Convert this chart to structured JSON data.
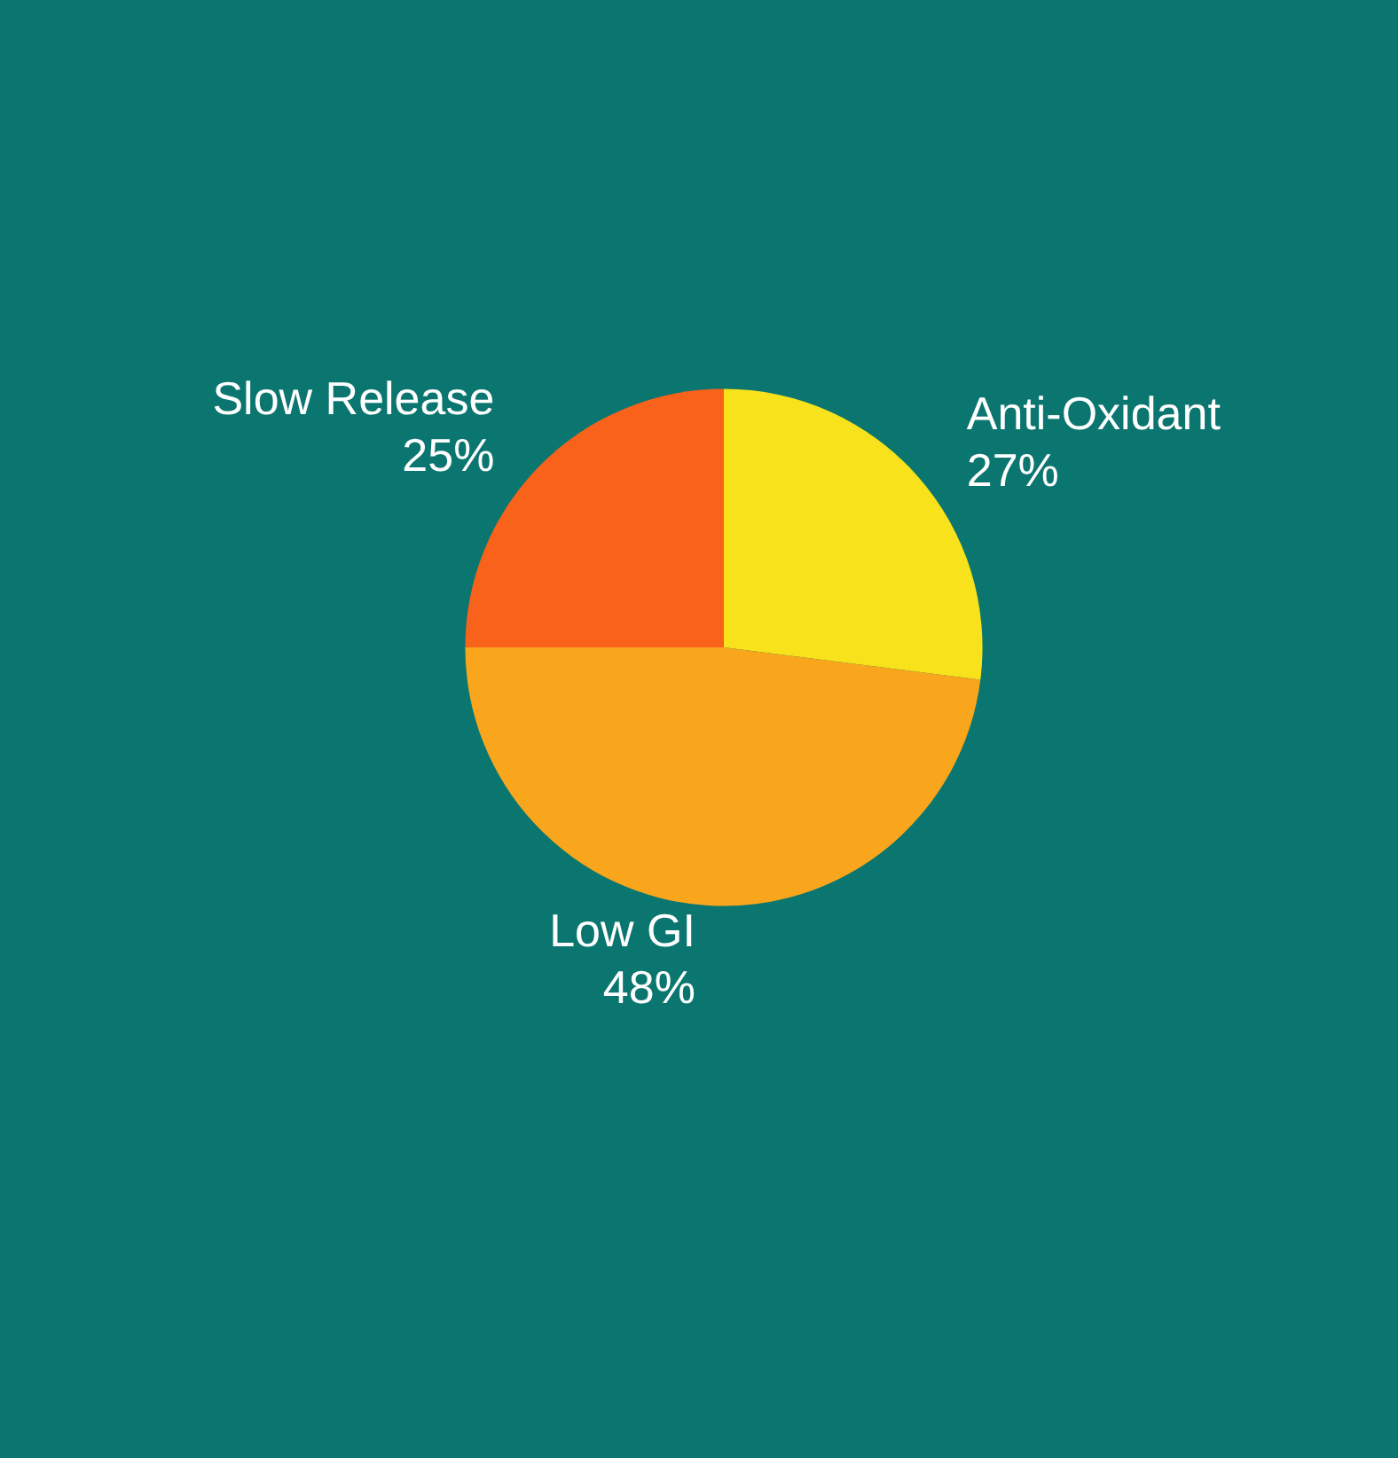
{
  "chart_data": {
    "type": "pie",
    "categories": [
      "Anti-Oxidant",
      "Low GI",
      "Slow Release"
    ],
    "values": [
      27,
      48,
      25
    ],
    "value_labels": [
      "27%",
      "48%",
      "25%"
    ],
    "colors": [
      "#f7e21c",
      "#f9a61c",
      "#f8621a"
    ],
    "legend": false
  }
}
